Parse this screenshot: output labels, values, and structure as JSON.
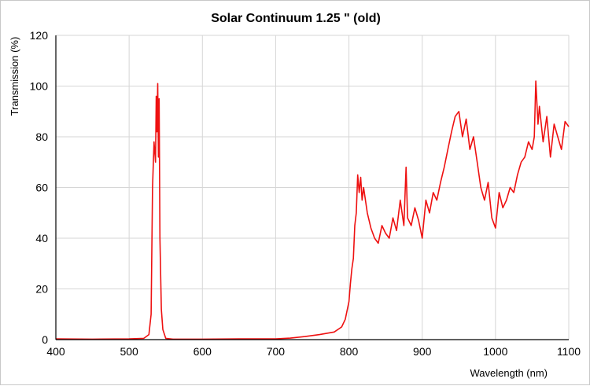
{
  "chart_data": {
    "type": "line",
    "title": "Solar Continuum 1.25 \" (old)",
    "xlabel": "Wavelength (nm)",
    "ylabel": "Transmission (%)",
    "xlim": [
      400,
      1100
    ],
    "ylim": [
      0,
      120
    ],
    "x_ticks": [
      "400",
      "500",
      "600",
      "700",
      "800",
      "900",
      "1000",
      "1100"
    ],
    "y_ticks": [
      "0",
      "20",
      "40",
      "60",
      "80",
      "100",
      "120"
    ],
    "grid": true,
    "series_color": "#ee1111",
    "series": [
      {
        "x": [
          400,
          450,
          500,
          520,
          527,
          530,
          532,
          534,
          536,
          537,
          538,
          539,
          540,
          541,
          542,
          544,
          546,
          550,
          560,
          600,
          650,
          700,
          720,
          740,
          760,
          780,
          790,
          795,
          800,
          802,
          804,
          806,
          808,
          810,
          812,
          814,
          816,
          818,
          820,
          825,
          830,
          835,
          840,
          845,
          850,
          855,
          860,
          865,
          870,
          875,
          878,
          880,
          885,
          890,
          895,
          900,
          905,
          910,
          915,
          920,
          925,
          930,
          935,
          940,
          945,
          950,
          955,
          960,
          965,
          970,
          975,
          980,
          985,
          990,
          995,
          1000,
          1005,
          1010,
          1015,
          1020,
          1025,
          1030,
          1035,
          1040,
          1045,
          1050,
          1053,
          1055,
          1058,
          1060,
          1065,
          1070,
          1075,
          1080,
          1085,
          1090,
          1095,
          1100
        ],
        "y": [
          0.3,
          0.2,
          0.3,
          0.5,
          2,
          10,
          60,
          78,
          70,
          96,
          82,
          101,
          72,
          95,
          40,
          12,
          4,
          0.5,
          0.2,
          0.2,
          0.3,
          0.3,
          0.6,
          1.2,
          2,
          3,
          5,
          8,
          15,
          22,
          28,
          32,
          45,
          50,
          65,
          58,
          64,
          55,
          60,
          50,
          44,
          40,
          38,
          45,
          42,
          40,
          48,
          43,
          55,
          45,
          68,
          48,
          45,
          52,
          47,
          40,
          55,
          50,
          58,
          55,
          62,
          68,
          75,
          82,
          88,
          90,
          80,
          87,
          75,
          80,
          70,
          60,
          55,
          62,
          48,
          44,
          58,
          52,
          55,
          60,
          58,
          65,
          70,
          72,
          78,
          75,
          80,
          102,
          85,
          92,
          78,
          88,
          72,
          85,
          80,
          75,
          86,
          84
        ]
      }
    ]
  }
}
